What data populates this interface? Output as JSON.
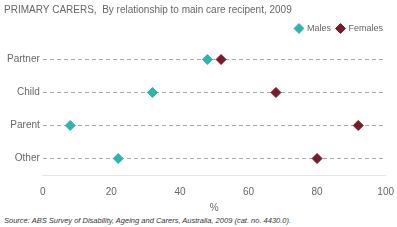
{
  "chart_data": {
    "type": "dot",
    "title": "PRIMARY CARERS,  By relationship to main care recipent, 2009",
    "categories": [
      "Partner",
      "Child",
      "Parent",
      "Other"
    ],
    "series": [
      {
        "name": "Males",
        "color": "#2db5ad",
        "marker": "diamond",
        "values": [
          48,
          32,
          8,
          22
        ]
      },
      {
        "name": "Females",
        "color": "#7b1a2a",
        "marker": "diamond",
        "values": [
          52,
          68,
          92,
          80
        ]
      }
    ],
    "xlabel": "%",
    "xlim": [
      0,
      100
    ],
    "xticks": [
      0,
      20,
      40,
      60,
      80,
      100
    ],
    "orientation": "horizontal",
    "grid": "y",
    "legend": "upper right",
    "annotations": [
      "Source: ABS Survey of Disability, Ageing and Carers, Australia, 2009 (cat.  no. 4430.0)."
    ]
  }
}
